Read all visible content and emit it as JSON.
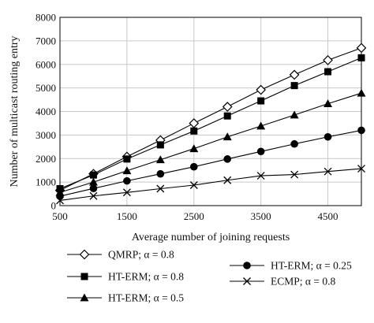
{
  "chart_data": {
    "type": "line",
    "title": "",
    "xlabel": "Average number of joining requests",
    "ylabel": "Number of multicast routing entry",
    "xlim": [
      500,
      5000
    ],
    "ylim": [
      0,
      8000
    ],
    "x_ticks": [
      500,
      1500,
      2500,
      3500,
      4500
    ],
    "y_ticks": [
      0,
      1000,
      2000,
      3000,
      4000,
      5000,
      6000,
      7000,
      8000
    ],
    "grid": true,
    "legend_position": "below",
    "x": [
      500,
      1000,
      1500,
      2000,
      2500,
      3000,
      3500,
      4000,
      4500,
      5000
    ],
    "series": [
      {
        "name": "QMRP; α = 0.8",
        "marker": "diamond-open",
        "values": [
          650,
          1350,
          2080,
          2780,
          3500,
          4200,
          4920,
          5560,
          6180,
          6700
        ]
      },
      {
        "name": "HT-ERM; α = 0.8",
        "marker": "square-filled",
        "values": [
          720,
          1300,
          1980,
          2580,
          3170,
          3810,
          4450,
          5100,
          5690,
          6280
        ]
      },
      {
        "name": "HT-ERM; α = 0.5",
        "marker": "triangle-filled",
        "values": [
          560,
          1000,
          1480,
          1950,
          2420,
          2920,
          3380,
          3850,
          4330,
          4780
        ]
      },
      {
        "name": "HT-ERM; α = 0.25",
        "marker": "circle-filled",
        "values": [
          400,
          730,
          1050,
          1350,
          1650,
          1980,
          2300,
          2620,
          2920,
          3200
        ]
      },
      {
        "name": "ECMP; α = 0.8",
        "marker": "x",
        "values": [
          220,
          410,
          560,
          720,
          870,
          1080,
          1270,
          1320,
          1450,
          1570
        ]
      }
    ]
  }
}
